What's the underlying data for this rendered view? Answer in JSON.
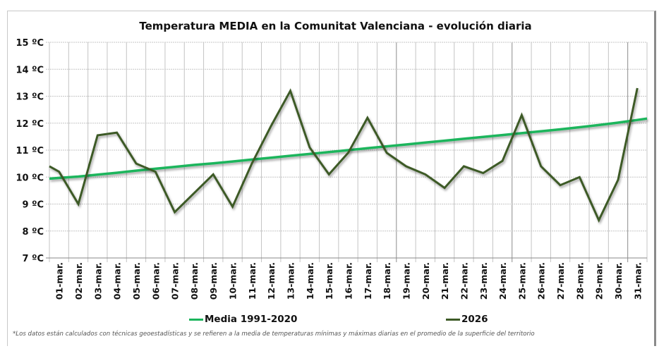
{
  "chart_data": {
    "type": "line",
    "title": "Temperatura MEDIA en la Comunitat Valenciana - evolución diaria",
    "xlabel": "",
    "ylabel": "",
    "ylim": [
      7,
      15
    ],
    "yticks": [
      7,
      8,
      9,
      10,
      11,
      12,
      13,
      14,
      15
    ],
    "ytick_suffix": " ºC",
    "grid": true,
    "legend_position": "bottom",
    "categories": [
      "01-mar.",
      "02-mar.",
      "03-mar.",
      "04-mar.",
      "05-mar.",
      "06-mar.",
      "07-mar.",
      "08-mar.",
      "09-mar.",
      "10-mar.",
      "11-mar.",
      "12-mar.",
      "13-mar.",
      "14-mar.",
      "15-mar.",
      "16-mar.",
      "17-mar.",
      "18-mar.",
      "19-mar.",
      "20-mar.",
      "21-mar.",
      "22-mar.",
      "23-mar.",
      "24-mar.",
      "25-mar.",
      "26-mar.",
      "27-mar.",
      "28-mar.",
      "29-mar.",
      "30-mar.",
      "31-mar."
    ],
    "series": [
      {
        "name": "Media 1991-2020",
        "color": "#1bb55c",
        "values": [
          9.97,
          10.02,
          10.09,
          10.16,
          10.24,
          10.31,
          10.38,
          10.45,
          10.51,
          10.58,
          10.65,
          10.72,
          10.79,
          10.86,
          10.93,
          11.0,
          11.07,
          11.14,
          11.21,
          11.28,
          11.35,
          11.42,
          11.49,
          11.56,
          11.63,
          11.7,
          11.77,
          11.85,
          11.93,
          12.02,
          12.12
        ]
      },
      {
        "name": "2026",
        "color": "#3d5a26",
        "start_value": 10.4,
        "values": [
          10.2,
          9.0,
          11.55,
          11.65,
          10.5,
          10.2,
          8.7,
          9.4,
          10.1,
          8.9,
          10.5,
          11.9,
          13.2,
          11.1,
          10.1,
          10.9,
          12.2,
          10.9,
          10.4,
          10.1,
          9.6,
          10.4,
          10.15,
          10.6,
          12.3,
          10.4,
          9.7,
          10.0,
          8.4,
          9.9,
          13.3
        ]
      }
    ]
  },
  "footnote": "*Los datos están calculados con técnicas geoestadísticas y se refieren a la media de temperaturas mínimas y máximas diarias en el promedio de la superficie del territorio"
}
